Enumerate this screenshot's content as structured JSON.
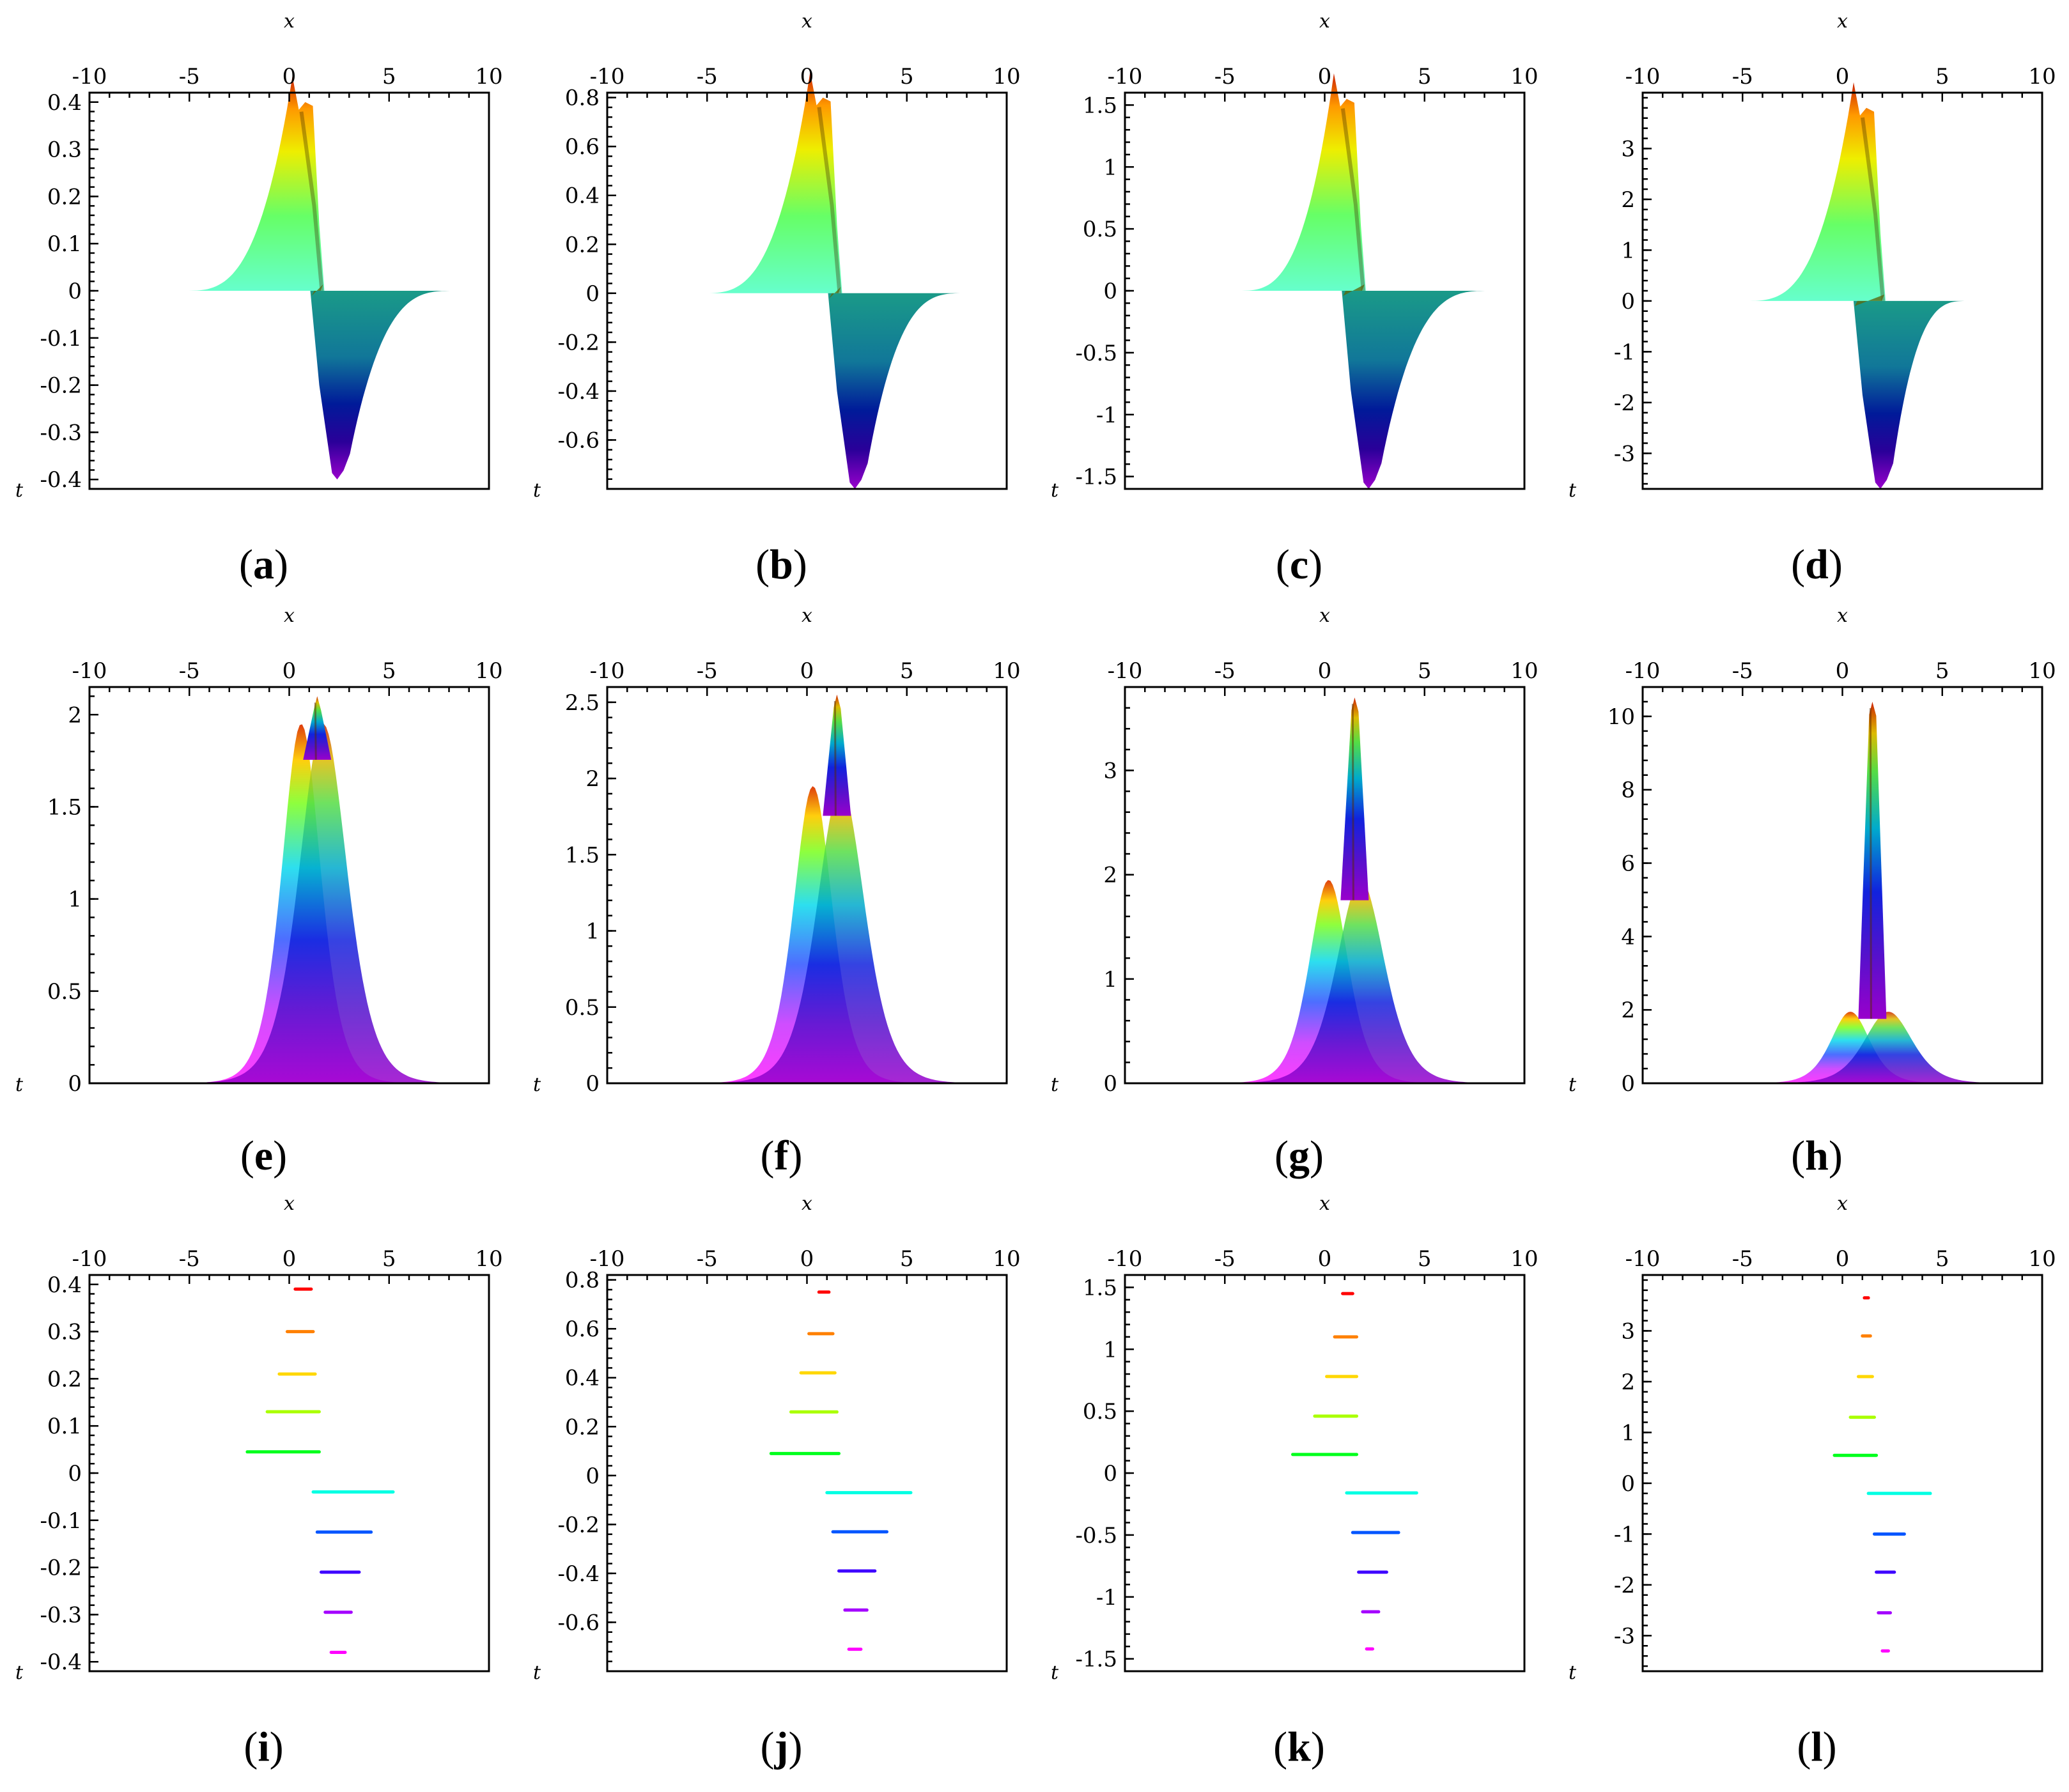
{
  "figure": {
    "colormap": [
      "#ff0000",
      "#ffa500",
      "#ffff00",
      "#00ff00",
      "#00ffff",
      "#0000ff",
      "#8a00ff",
      "#ff00ff"
    ]
  },
  "chart_data": [
    {
      "id": "a",
      "panel_label": "a",
      "type": "surface-odd",
      "xlabel": "x",
      "ylabel": "t",
      "xlim": [
        -10,
        10
      ],
      "xticks": [
        -10,
        -5,
        0,
        5,
        10
      ],
      "ylim": [
        -0.42,
        0.42
      ],
      "yticks": [
        -0.4,
        -0.3,
        -0.2,
        -0.1,
        0,
        0.1,
        0.2,
        0.3,
        0.4
      ],
      "ytick_labels": [
        "-0.4",
        "-0.3",
        "-0.2",
        "-0.1",
        "0",
        "0.1",
        "0.2",
        "0.3",
        "0.4"
      ],
      "peak": {
        "x": 0.8,
        "t": 0.4
      },
      "trough": {
        "x": 2.4,
        "t": -0.4
      },
      "x_range": [
        -5.3,
        8.3
      ]
    },
    {
      "id": "b",
      "panel_label": "b",
      "type": "surface-odd",
      "xlabel": "x",
      "ylabel": "t",
      "xlim": [
        -10,
        10
      ],
      "xticks": [
        -10,
        -5,
        0,
        5,
        10
      ],
      "ylim": [
        -0.8,
        0.82
      ],
      "yticks": [
        -0.6,
        -0.4,
        -0.2,
        0,
        0.2,
        0.4,
        0.6,
        0.8
      ],
      "ytick_labels": [
        "-0.6",
        "-0.4",
        "-0.2",
        "0",
        "0.2",
        "0.4",
        "0.6",
        "0.8"
      ],
      "peak": {
        "x": 0.8,
        "t": 0.8
      },
      "trough": {
        "x": 2.4,
        "t": -0.8
      },
      "x_range": [
        -5.3,
        7.9
      ]
    },
    {
      "id": "c",
      "panel_label": "c",
      "type": "surface-odd",
      "xlabel": "x",
      "ylabel": "t",
      "xlim": [
        -10,
        10
      ],
      "xticks": [
        -10,
        -5,
        0,
        5,
        10
      ],
      "ylim": [
        -1.6,
        1.6
      ],
      "yticks": [
        -1.5,
        -1,
        -0.5,
        0,
        0.5,
        1,
        1.5
      ],
      "ytick_labels": [
        "-1.5",
        "-1",
        "-0.5",
        "0",
        "0.5",
        "1",
        "1.5"
      ],
      "peak": {
        "x": 1.1,
        "t": 1.55
      },
      "trough": {
        "x": 2.2,
        "t": -1.6
      },
      "x_range": [
        -4.4,
        8.3
      ]
    },
    {
      "id": "d",
      "panel_label": "d",
      "type": "surface-odd",
      "xlabel": "x",
      "ylabel": "t",
      "xlim": [
        -10,
        10
      ],
      "xticks": [
        -10,
        -5,
        0,
        5,
        10
      ],
      "ylim": [
        -3.7,
        4.1
      ],
      "yticks": [
        -3,
        -2,
        -1,
        0,
        1,
        2,
        3
      ],
      "ytick_labels": [
        "-3",
        "-2",
        "-1",
        "0",
        "1",
        "2",
        "3"
      ],
      "peak": {
        "x": 1.2,
        "t": 3.8
      },
      "trough": {
        "x": 1.9,
        "t": -3.7
      },
      "x_range": [
        -4.9,
        6.3
      ]
    },
    {
      "id": "e",
      "panel_label": "e",
      "type": "surface-even",
      "xlabel": "x",
      "ylabel": "t",
      "xlim": [
        -10,
        10
      ],
      "xticks": [
        -10,
        -5,
        0,
        5,
        10
      ],
      "ylim": [
        0,
        2.15
      ],
      "yticks": [
        0,
        0.5,
        1,
        1.5,
        2
      ],
      "ytick_labels": [
        "0",
        "0.5",
        "1",
        "1.5",
        "2"
      ],
      "peak": {
        "x": 1.4,
        "t": 2.1
      },
      "hump_height": 1.95,
      "widths": [
        1.3,
        1.6
      ],
      "centers": [
        0.6,
        1.7
      ],
      "x_range": [
        -6,
        8.5
      ]
    },
    {
      "id": "f",
      "panel_label": "f",
      "type": "surface-even",
      "xlabel": "x",
      "ylabel": "t",
      "xlim": [
        -10,
        10
      ],
      "xticks": [
        -10,
        -5,
        0,
        5,
        10
      ],
      "ylim": [
        0,
        2.6
      ],
      "yticks": [
        0,
        0.5,
        1,
        1.5,
        2,
        2.5
      ],
      "ytick_labels": [
        "0",
        "0.5",
        "1",
        "1.5",
        "2",
        "2.5"
      ],
      "peak": {
        "x": 1.5,
        "t": 2.55
      },
      "hump_height": 1.95,
      "widths": [
        1.3,
        1.6
      ],
      "centers": [
        0.3,
        1.7
      ],
      "x_range": [
        -6,
        8.5
      ]
    },
    {
      "id": "g",
      "panel_label": "g",
      "type": "surface-even",
      "xlabel": "x",
      "ylabel": "t",
      "xlim": [
        -10,
        10
      ],
      "xticks": [
        -10,
        -5,
        0,
        5,
        10
      ],
      "ylim": [
        0,
        3.8
      ],
      "yticks": [
        0,
        1,
        2,
        3
      ],
      "ytick_labels": [
        "0",
        "1",
        "2",
        "3"
      ],
      "peak": {
        "x": 1.5,
        "t": 3.7
      },
      "hump_height": 1.95,
      "widths": [
        1.3,
        1.6
      ],
      "centers": [
        0.2,
        1.8
      ],
      "x_range": [
        -6,
        8.5
      ]
    },
    {
      "id": "h",
      "panel_label": "h",
      "type": "surface-even",
      "xlabel": "x",
      "ylabel": "t",
      "xlim": [
        -10,
        10
      ],
      "xticks": [
        -10,
        -5,
        0,
        5,
        10
      ],
      "ylim": [
        0,
        10.8
      ],
      "yticks": [
        0,
        2,
        4,
        6,
        8,
        10
      ],
      "ytick_labels": [
        "0",
        "2",
        "4",
        "6",
        "8",
        "10"
      ],
      "peak": {
        "x": 1.5,
        "t": 10.4
      },
      "hump_height": 1.95,
      "widths": [
        1.3,
        1.6
      ],
      "centers": [
        0.4,
        2.3
      ],
      "x_range": [
        -4,
        7
      ]
    },
    {
      "id": "i",
      "panel_label": "i",
      "type": "contour",
      "xlabel": "x",
      "ylabel": "t",
      "xlim": [
        -10,
        10
      ],
      "xticks": [
        -10,
        -5,
        0,
        5,
        10
      ],
      "ylim": [
        -0.42,
        0.42
      ],
      "yticks": [
        -0.4,
        -0.3,
        -0.2,
        -0.1,
        0,
        0.1,
        0.2,
        0.3,
        0.4
      ],
      "ytick_labels": [
        "-0.4",
        "-0.3",
        "-0.2",
        "-0.1",
        "0",
        "0.1",
        "0.2",
        "0.3",
        "0.4"
      ],
      "segments": [
        {
          "t": 0.39,
          "x": [
            0.3,
            1.1
          ]
        },
        {
          "t": 0.3,
          "x": -0.1,
          "x2": 1.2
        },
        {
          "t": 0.21,
          "x": [
            -0.5,
            1.3
          ]
        },
        {
          "t": 0.13,
          "x": [
            -1.1,
            1.5
          ]
        },
        {
          "t": 0.045,
          "x": [
            -2.1,
            1.5
          ]
        },
        {
          "t": -0.04,
          "x": [
            1.2,
            5.2
          ]
        },
        {
          "t": -0.125,
          "x": [
            1.4,
            4.1
          ]
        },
        {
          "t": -0.21,
          "x": [
            1.6,
            3.5
          ]
        },
        {
          "t": -0.295,
          "x": [
            1.8,
            3.1
          ]
        },
        {
          "t": -0.38,
          "x": [
            2.1,
            2.8
          ]
        }
      ]
    },
    {
      "id": "j",
      "panel_label": "j",
      "type": "contour",
      "xlabel": "x",
      "ylabel": "t",
      "xlim": [
        -10,
        10
      ],
      "xticks": [
        -10,
        -5,
        0,
        5,
        10
      ],
      "ylim": [
        -0.8,
        0.82
      ],
      "yticks": [
        -0.6,
        -0.4,
        -0.2,
        0,
        0.2,
        0.4,
        0.6,
        0.8
      ],
      "ytick_labels": [
        "-0.6",
        "-0.4",
        "-0.2",
        "0",
        "0.2",
        "0.4",
        "0.6",
        "0.8"
      ],
      "segments": [
        {
          "t": 0.75,
          "x": [
            0.6,
            1.1
          ]
        },
        {
          "t": 0.58,
          "x": [
            0.1,
            1.3
          ]
        },
        {
          "t": 0.42,
          "x": [
            -0.3,
            1.4
          ]
        },
        {
          "t": 0.26,
          "x": [
            -0.8,
            1.5
          ]
        },
        {
          "t": 0.09,
          "x": [
            -1.8,
            1.6
          ]
        },
        {
          "t": -0.07,
          "x": [
            1.0,
            5.2
          ]
        },
        {
          "t": -0.23,
          "x": [
            1.3,
            4.0
          ]
        },
        {
          "t": -0.39,
          "x": [
            1.6,
            3.4
          ]
        },
        {
          "t": -0.55,
          "x": [
            1.9,
            3.0
          ]
        },
        {
          "t": -0.71,
          "x": [
            2.1,
            2.7
          ]
        }
      ]
    },
    {
      "id": "k",
      "panel_label": "k",
      "type": "contour",
      "xlabel": "x",
      "ylabel": "t",
      "xlim": [
        -10,
        10
      ],
      "xticks": [
        -10,
        -5,
        0,
        5,
        10
      ],
      "ylim": [
        -1.6,
        1.6
      ],
      "yticks": [
        -1.5,
        -1,
        -0.5,
        0,
        0.5,
        1,
        1.5
      ],
      "ytick_labels": [
        "-1.5",
        "-1",
        "-0.5",
        "0",
        "0.5",
        "1",
        "1.5"
      ],
      "segments": [
        {
          "t": 1.45,
          "x": [
            0.9,
            1.4
          ]
        },
        {
          "t": 1.1,
          "x": [
            0.5,
            1.6
          ]
        },
        {
          "t": 0.78,
          "x": [
            0.1,
            1.6
          ]
        },
        {
          "t": 0.46,
          "x": [
            -0.5,
            1.6
          ]
        },
        {
          "t": 0.15,
          "x": [
            -1.6,
            1.6
          ]
        },
        {
          "t": -0.16,
          "x": [
            1.1,
            4.6
          ]
        },
        {
          "t": -0.48,
          "x": [
            1.4,
            3.7
          ]
        },
        {
          "t": -0.8,
          "x": [
            1.7,
            3.1
          ]
        },
        {
          "t": -1.12,
          "x": [
            1.9,
            2.7
          ]
        },
        {
          "t": -1.42,
          "x": [
            2.1,
            2.4
          ]
        }
      ]
    },
    {
      "id": "l",
      "panel_label": "l",
      "type": "contour",
      "xlabel": "x",
      "ylabel": "t",
      "xlim": [
        -10,
        10
      ],
      "xticks": [
        -10,
        -5,
        0,
        5,
        10
      ],
      "ylim": [
        -3.7,
        4.1
      ],
      "yticks": [
        -3,
        -2,
        -1,
        0,
        1,
        2,
        3
      ],
      "ytick_labels": [
        "-3",
        "-2",
        "-1",
        "0",
        "1",
        "2",
        "3"
      ],
      "segments": [
        {
          "t": 3.65,
          "x": [
            1.1,
            1.3
          ]
        },
        {
          "t": 2.9,
          "x": [
            1.0,
            1.4
          ]
        },
        {
          "t": 2.1,
          "x": [
            0.8,
            1.5
          ]
        },
        {
          "t": 1.3,
          "x": [
            0.4,
            1.6
          ]
        },
        {
          "t": 0.55,
          "x": [
            -0.4,
            1.7
          ]
        },
        {
          "t": -0.2,
          "x": [
            1.3,
            4.4
          ]
        },
        {
          "t": -1.0,
          "x": [
            1.6,
            3.1
          ]
        },
        {
          "t": -1.75,
          "x": [
            1.7,
            2.6
          ]
        },
        {
          "t": -2.55,
          "x": [
            1.8,
            2.4
          ]
        },
        {
          "t": -3.3,
          "x": [
            2.0,
            2.3
          ]
        }
      ]
    }
  ]
}
